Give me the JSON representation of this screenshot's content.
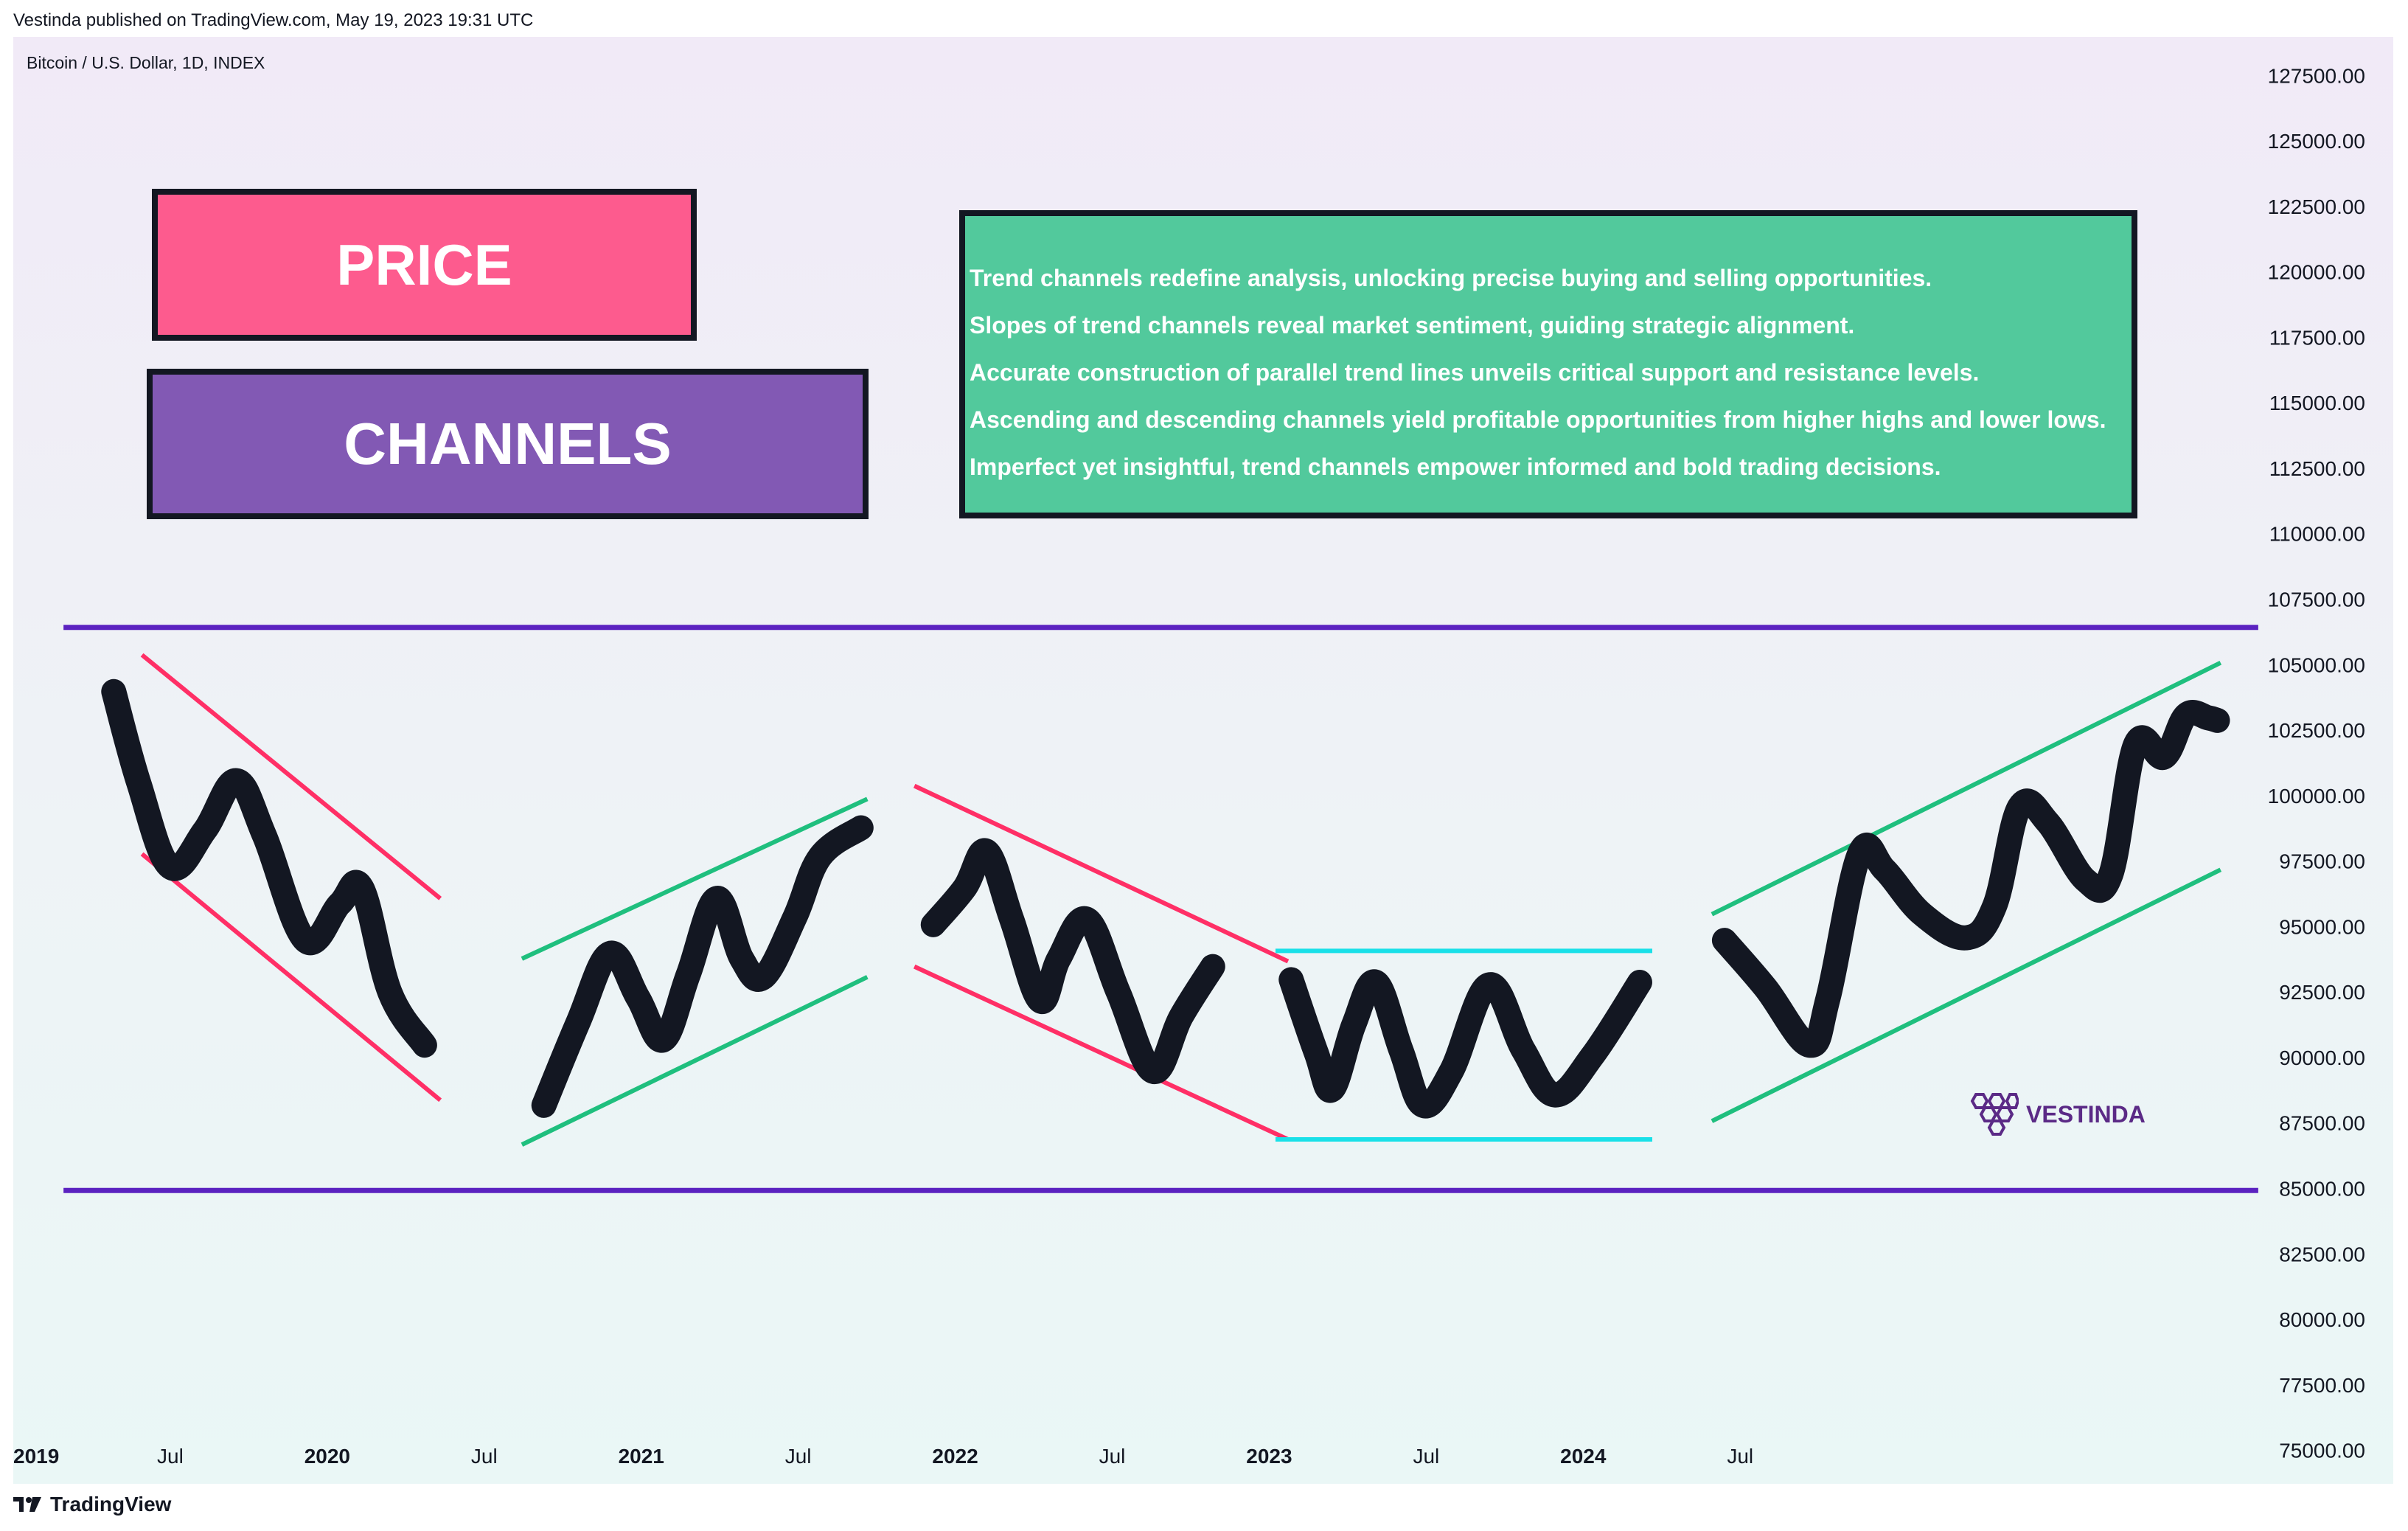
{
  "header": {
    "published": "Vestinda published on TradingView.com, May 19, 2023 19:31 UTC"
  },
  "symbol": {
    "label": "Bitcoin / U.S. Dollar, 1D, INDEX"
  },
  "title_boxes": {
    "price": {
      "text": "PRICE",
      "color": "#fd5b8e"
    },
    "channels": {
      "text": "CHANNELS",
      "color": "#8259b4"
    }
  },
  "info_box": {
    "color": "#52c99c",
    "lines": [
      "Trend channels redefine analysis, unlocking precise buying and selling opportunities.",
      "Slopes of trend channels reveal market sentiment, guiding strategic alignment.",
      "Accurate construction of parallel trend lines unveils critical support and resistance levels.",
      "Ascending and descending channels yield profitable opportunities from higher highs and lower lows.",
      "Imperfect yet insightful, trend channels empower informed and bold trading decisions."
    ]
  },
  "watermark": {
    "text": "VESTINDA",
    "icon": "hexagon-cluster-icon",
    "color": "#5b2a86"
  },
  "footer": {
    "text": "TradingView",
    "icon": "tradingview-logo-icon"
  },
  "chart_data": {
    "type": "line",
    "title": "",
    "y_axis": {
      "position": "right",
      "ylim": [
        73750,
        129000
      ],
      "ticks": [
        127500,
        125000,
        122500,
        120000,
        117500,
        115000,
        112500,
        110000,
        107500,
        105000,
        102500,
        100000,
        97500,
        95000,
        92500,
        90000,
        87500,
        85000,
        82500,
        80000,
        77500,
        75000
      ],
      "tick_labels": [
        "127500.00",
        "125000.00",
        "122500.00",
        "120000.00",
        "117500.00",
        "115000.00",
        "112500.00",
        "110000.00",
        "107500.00",
        "105000.00",
        "102500.00",
        "100000.00",
        "97500.00",
        "95000.00",
        "92500.00",
        "90000.00",
        "87500.00",
        "85000.00",
        "82500.00",
        "80000.00",
        "77500.00",
        "75000.00"
      ]
    },
    "x_axis": {
      "xlim": [
        2019.0,
        2026.58
      ],
      "ticks": [
        {
          "x": 2019.0,
          "label": "2019",
          "bold": true
        },
        {
          "x": 2019.5,
          "label": "Jul",
          "bold": false
        },
        {
          "x": 2020.0,
          "label": "2020",
          "bold": true
        },
        {
          "x": 2020.5,
          "label": "Jul",
          "bold": false
        },
        {
          "x": 2021.0,
          "label": "2021",
          "bold": true
        },
        {
          "x": 2021.5,
          "label": "Jul",
          "bold": false
        },
        {
          "x": 2022.0,
          "label": "2022",
          "bold": true
        },
        {
          "x": 2022.5,
          "label": "Jul",
          "bold": false
        },
        {
          "x": 2023.0,
          "label": "2023",
          "bold": true
        },
        {
          "x": 2023.5,
          "label": "Jul",
          "bold": false
        },
        {
          "x": 2024.0,
          "label": "2024",
          "bold": true
        },
        {
          "x": 2024.5,
          "label": "Jul",
          "bold": false
        }
      ]
    },
    "grid": false,
    "horizontal_levels": [
      {
        "name": "resistance",
        "y": 106450,
        "x_start": 2019.16,
        "x_end": 2026.15,
        "color": "#5b22c0"
      },
      {
        "name": "support",
        "y": 84950,
        "x_start": 2019.16,
        "x_end": 2026.15,
        "color": "#5b22c0"
      }
    ],
    "channel_lines": [
      {
        "segment": 1,
        "color": "#ff2f66",
        "points": [
          [
            2019.41,
            105400
          ],
          [
            2020.36,
            96100
          ]
        ]
      },
      {
        "segment": 1,
        "color": "#ff2f66",
        "points": [
          [
            2019.41,
            97800
          ],
          [
            2020.36,
            88400
          ]
        ]
      },
      {
        "segment": 2,
        "color": "#1fbf7e",
        "points": [
          [
            2020.62,
            93800
          ],
          [
            2021.72,
            99900
          ]
        ]
      },
      {
        "segment": 2,
        "color": "#1fbf7e",
        "points": [
          [
            2020.62,
            86700
          ],
          [
            2021.72,
            93100
          ]
        ]
      },
      {
        "segment": 3,
        "color": "#ff2f66",
        "points": [
          [
            2021.87,
            100400
          ],
          [
            2023.06,
            93700
          ]
        ]
      },
      {
        "segment": 3,
        "color": "#ff2f66",
        "points": [
          [
            2021.87,
            93500
          ],
          [
            2023.06,
            86900
          ]
        ]
      },
      {
        "segment": 4,
        "color": "#19e0e8",
        "points": [
          [
            2023.02,
            94100
          ],
          [
            2024.22,
            94100
          ]
        ]
      },
      {
        "segment": 4,
        "color": "#19e0e8",
        "points": [
          [
            2023.02,
            86900
          ],
          [
            2024.22,
            86900
          ]
        ]
      },
      {
        "segment": 5,
        "color": "#1fbf7e",
        "points": [
          [
            2024.41,
            95500
          ],
          [
            2026.03,
            105100
          ]
        ]
      },
      {
        "segment": 5,
        "color": "#1fbf7e",
        "points": [
          [
            2024.41,
            87600
          ],
          [
            2026.03,
            97200
          ]
        ]
      }
    ],
    "price_strokes": [
      {
        "segment": 1,
        "color": "#131722",
        "points": [
          [
            2019.32,
            104000
          ],
          [
            2019.4,
            100500
          ],
          [
            2019.5,
            97300
          ],
          [
            2019.61,
            98700
          ],
          [
            2019.71,
            100600
          ],
          [
            2019.8,
            98500
          ],
          [
            2019.93,
            94500
          ],
          [
            2020.04,
            95900
          ],
          [
            2020.11,
            96500
          ],
          [
            2020.2,
            92500
          ],
          [
            2020.31,
            90500
          ]
        ]
      },
      {
        "segment": 2,
        "color": "#131722",
        "points": [
          [
            2020.69,
            88200
          ],
          [
            2020.8,
            91400
          ],
          [
            2020.9,
            94000
          ],
          [
            2020.99,
            92300
          ],
          [
            2021.07,
            90700
          ],
          [
            2021.15,
            93200
          ],
          [
            2021.24,
            96100
          ],
          [
            2021.32,
            93800
          ],
          [
            2021.39,
            93100
          ],
          [
            2021.49,
            95400
          ],
          [
            2021.57,
            97700
          ],
          [
            2021.7,
            98800
          ]
        ]
      },
      {
        "segment": 3,
        "color": "#131722",
        "points": [
          [
            2021.93,
            95100
          ],
          [
            2022.03,
            96500
          ],
          [
            2022.1,
            97900
          ],
          [
            2022.18,
            95300
          ],
          [
            2022.27,
            92200
          ],
          [
            2022.33,
            93800
          ],
          [
            2022.42,
            95300
          ],
          [
            2022.52,
            92500
          ],
          [
            2022.63,
            89500
          ],
          [
            2022.72,
            91600
          ],
          [
            2022.82,
            93500
          ]
        ]
      },
      {
        "segment": 4,
        "color": "#131722",
        "points": [
          [
            2023.07,
            93000
          ],
          [
            2023.15,
            90200
          ],
          [
            2023.2,
            88800
          ],
          [
            2023.27,
            91300
          ],
          [
            2023.34,
            92900
          ],
          [
            2023.42,
            90300
          ],
          [
            2023.49,
            88200
          ],
          [
            2023.58,
            89500
          ],
          [
            2023.7,
            92800
          ],
          [
            2023.81,
            90300
          ],
          [
            2023.91,
            88600
          ],
          [
            2024.03,
            90100
          ],
          [
            2024.18,
            92900
          ]
        ]
      },
      {
        "segment": 5,
        "color": "#131722",
        "points": [
          [
            2024.45,
            94500
          ],
          [
            2024.58,
            92700
          ],
          [
            2024.72,
            90500
          ],
          [
            2024.78,
            92300
          ],
          [
            2024.88,
            97800
          ],
          [
            2024.96,
            97200
          ],
          [
            2025.08,
            95500
          ],
          [
            2025.22,
            94600
          ],
          [
            2025.31,
            95800
          ],
          [
            2025.39,
            99600
          ],
          [
            2025.48,
            99000
          ],
          [
            2025.6,
            96800
          ],
          [
            2025.68,
            97000
          ],
          [
            2025.76,
            102000
          ],
          [
            2025.85,
            101500
          ],
          [
            2025.92,
            103100
          ],
          [
            2025.99,
            103000
          ],
          [
            2026.02,
            102900
          ]
        ]
      }
    ]
  }
}
